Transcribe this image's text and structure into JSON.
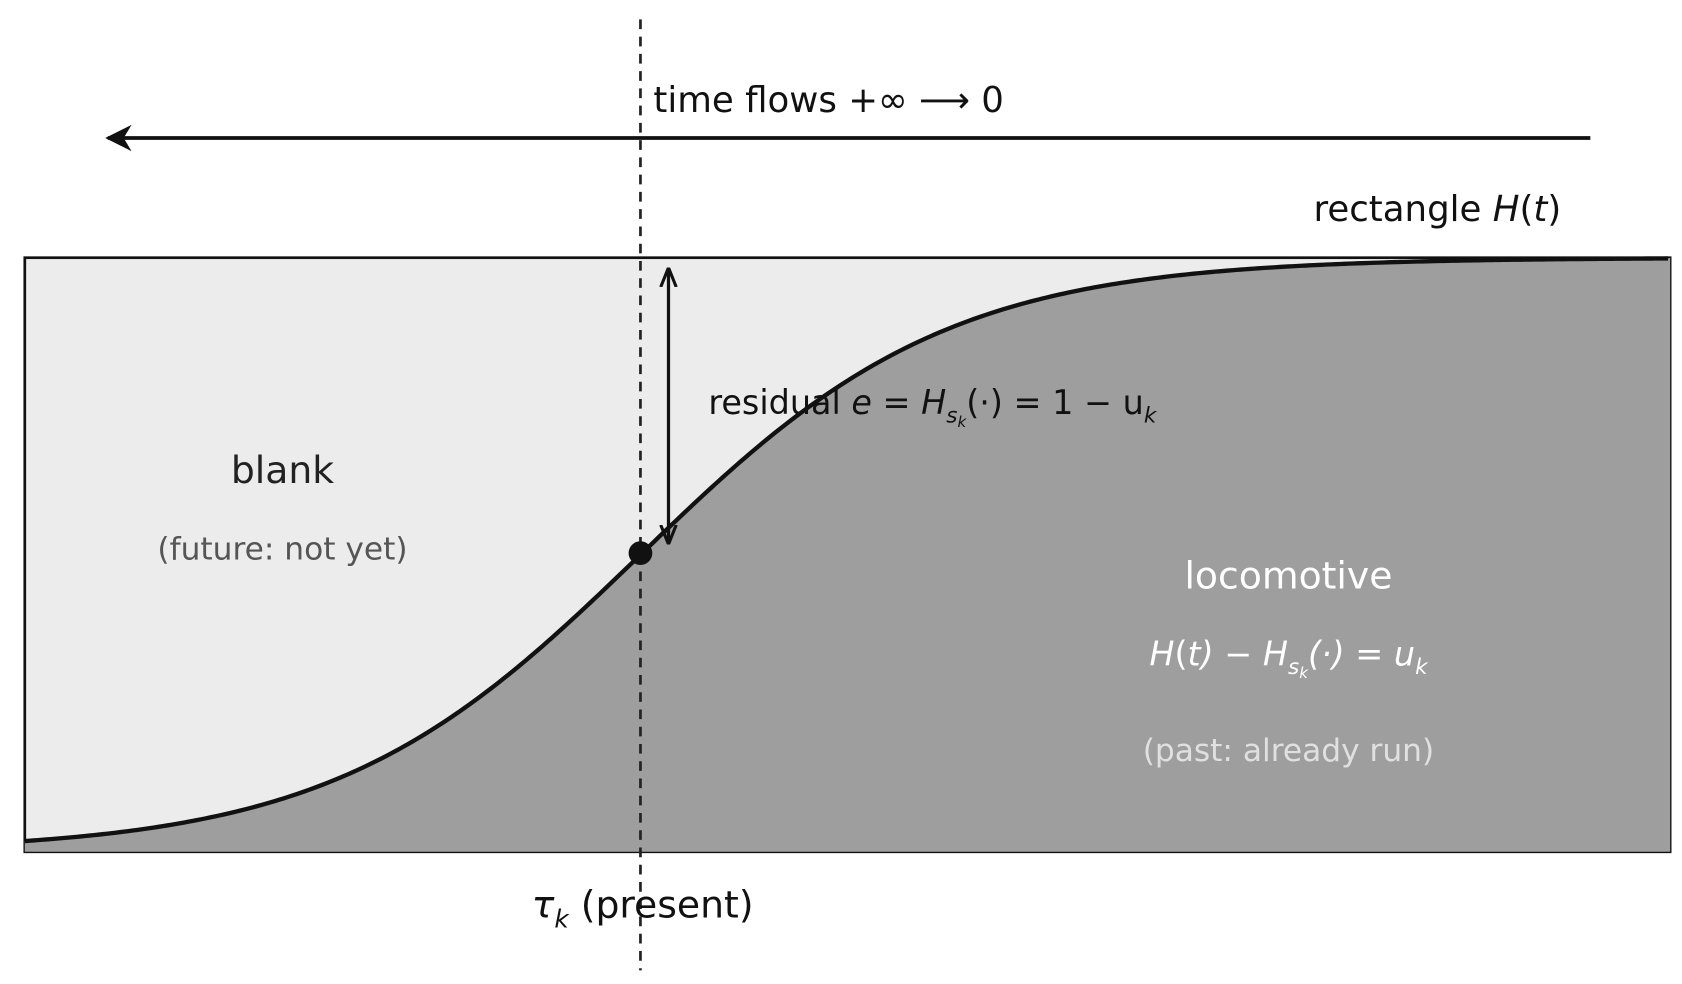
{
  "time_label": "time flows  +∞ ⟶ 0",
  "rectangle_label": [
    "rectangle  ",
    "H",
    "(",
    "t",
    ")"
  ],
  "residual_label": [
    "residual  ",
    "e = H",
    "s",
    "k",
    "(·) = 1 − u",
    "k"
  ],
  "blank": {
    "title": "blank",
    "note": "(future: not yet)"
  },
  "locomotive": {
    "title": "locomotive",
    "formula": [
      "H",
      "(",
      "t",
      ") − H",
      "s",
      "k",
      "(·) = u",
      "k"
    ],
    "note": "(past: already run)"
  },
  "present_label": [
    "τ",
    "k",
    "  (present)"
  ]
}
